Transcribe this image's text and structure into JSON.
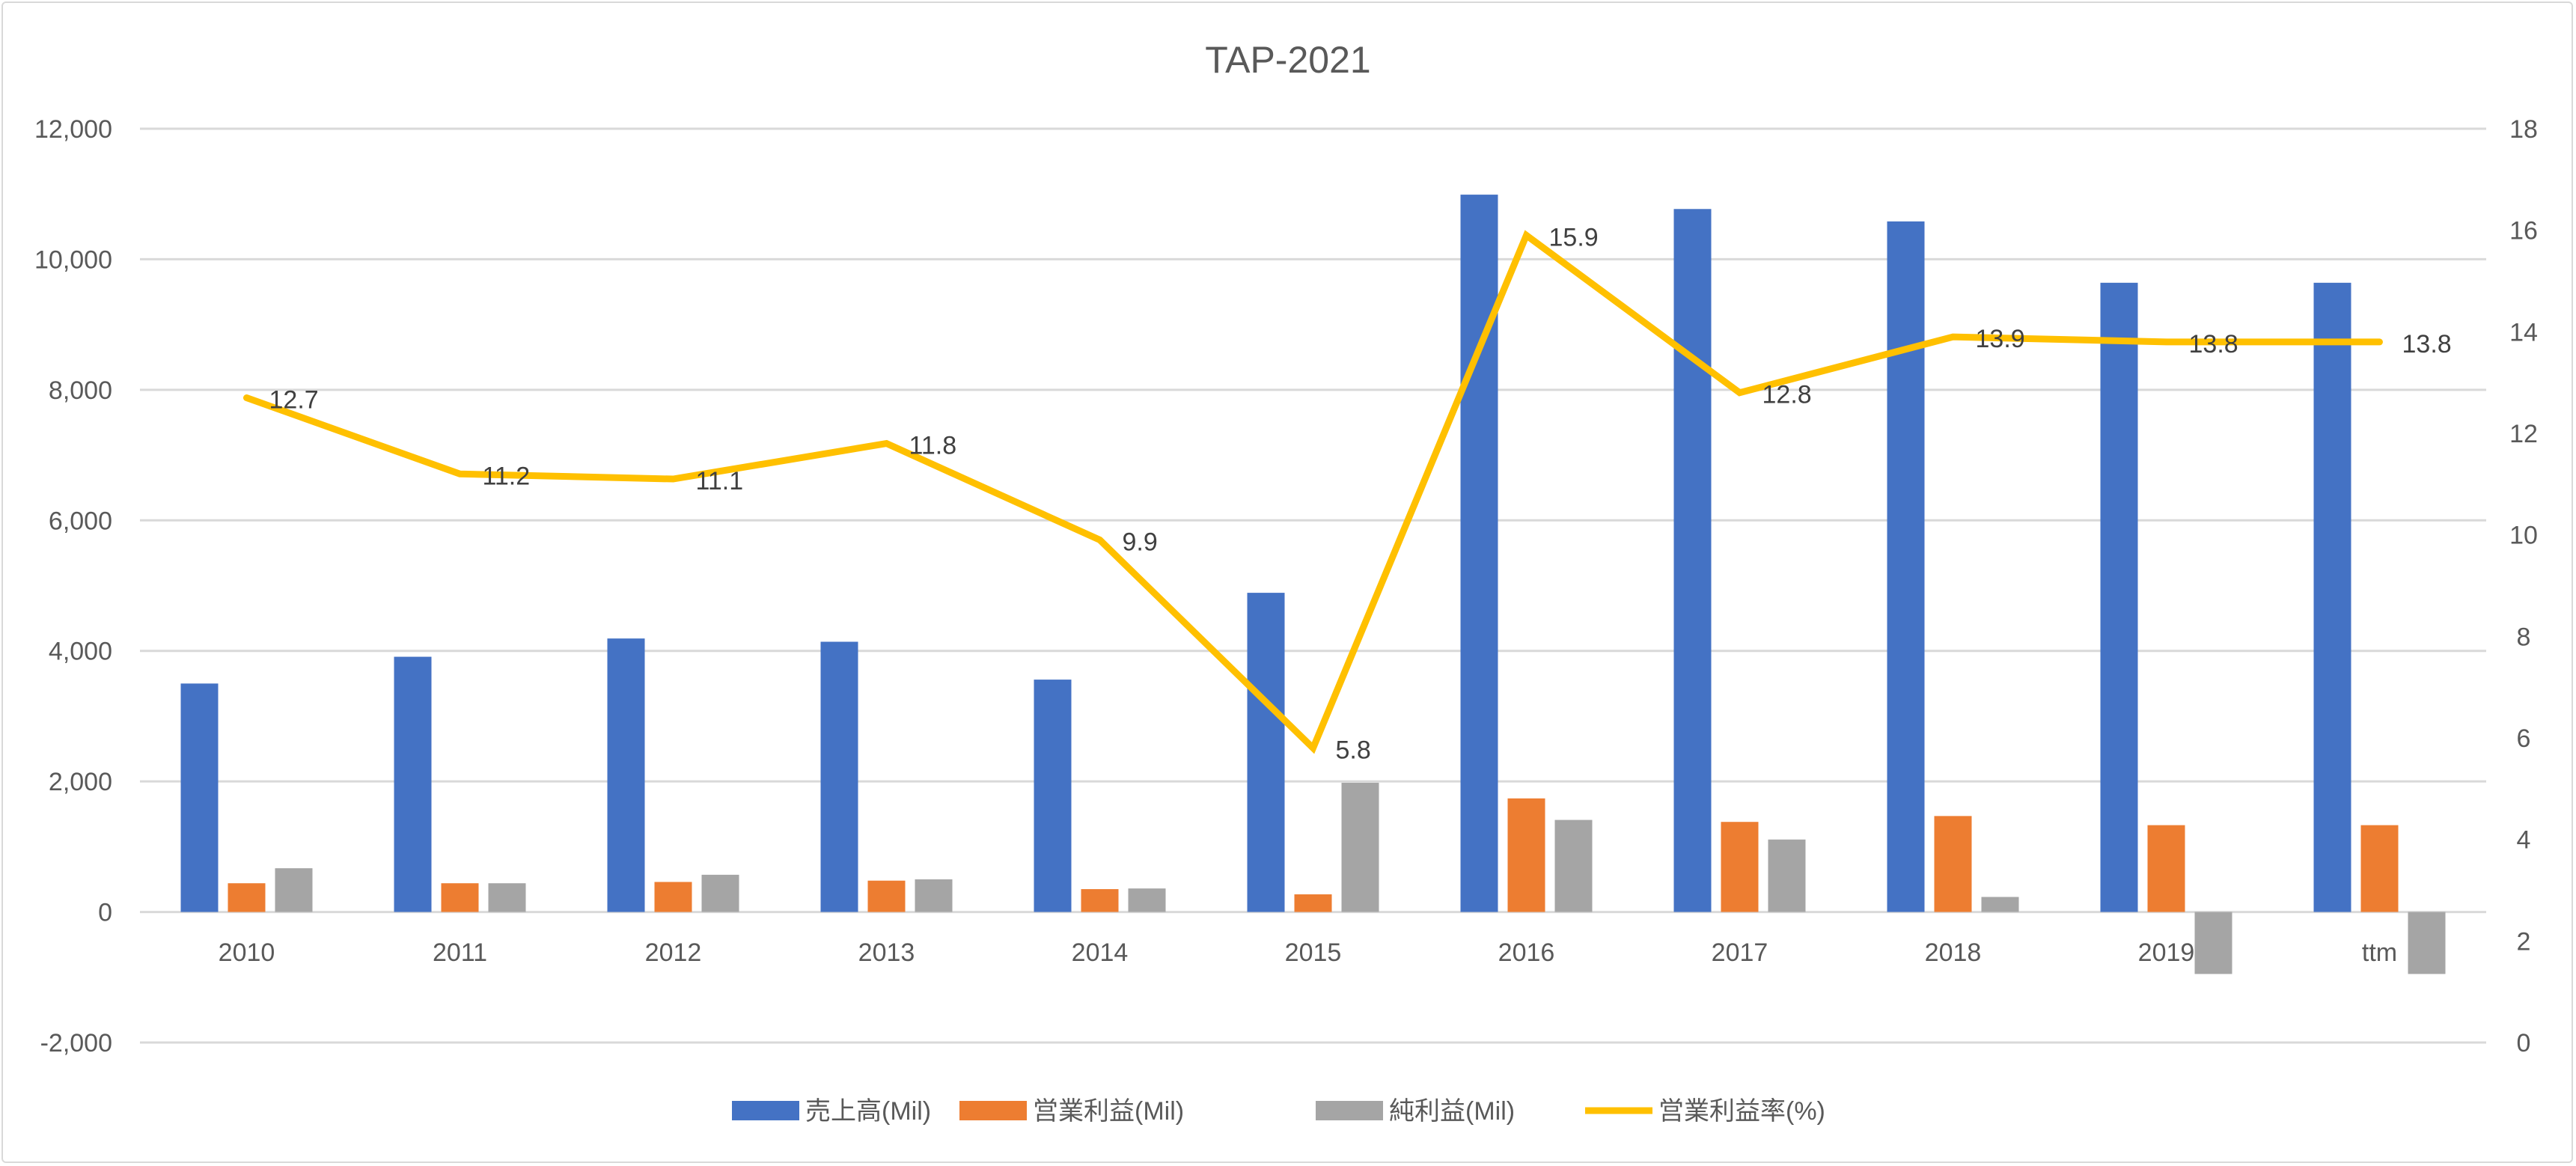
{
  "chart_data": {
    "type": "bar+line",
    "title": "TAP-2021",
    "categories": [
      "2010",
      "2011",
      "2012",
      "2013",
      "2014",
      "2015",
      "2016",
      "2017",
      "2018",
      "2019",
      "ttm"
    ],
    "y_left": {
      "range": [
        -2000,
        12000
      ],
      "ticks": [
        "-2,000",
        "0",
        "2,000",
        "4,000",
        "6,000",
        "8,000",
        "10,000",
        "12,000"
      ],
      "tick_values": [
        -2000,
        0,
        2000,
        4000,
        6000,
        8000,
        10000,
        12000
      ]
    },
    "y_right": {
      "range": [
        0,
        18
      ],
      "ticks": [
        "0",
        "2",
        "4",
        "6",
        "8",
        "10",
        "12",
        "14",
        "16",
        "18"
      ],
      "tick_values": [
        0,
        2,
        4,
        6,
        8,
        10,
        12,
        14,
        16,
        18
      ]
    },
    "grid": true,
    "legend_position": "bottom",
    "series": [
      {
        "name": "売上高(Mil)",
        "type": "bar",
        "axis": "left",
        "color": "#4472C4",
        "values": [
          3500,
          3910,
          4190,
          4140,
          3560,
          4890,
          10990,
          10770,
          10580,
          9640,
          9640
        ]
      },
      {
        "name": "営業利益(Mil)",
        "type": "bar",
        "axis": "left",
        "color": "#ED7D31",
        "values": [
          440,
          440,
          460,
          480,
          350,
          270,
          1740,
          1380,
          1470,
          1330,
          1330
        ]
      },
      {
        "name": "純利益(Mil)",
        "type": "bar",
        "axis": "left",
        "color": "#A5A5A5",
        "values": [
          670,
          440,
          570,
          500,
          360,
          1980,
          1410,
          1110,
          230,
          -950,
          -950
        ]
      },
      {
        "name": "営業利益率(%)",
        "type": "line",
        "axis": "right",
        "color": "#FFC000",
        "values": [
          12.7,
          11.2,
          11.1,
          11.8,
          9.9,
          5.8,
          15.9,
          12.8,
          13.9,
          13.8,
          13.8
        ],
        "data_labels": [
          "12.7",
          "11.2",
          "11.1",
          "11.8",
          "9.9",
          "5.8",
          "15.9",
          "12.8",
          "13.9",
          "13.8",
          "13.8"
        ]
      }
    ]
  }
}
